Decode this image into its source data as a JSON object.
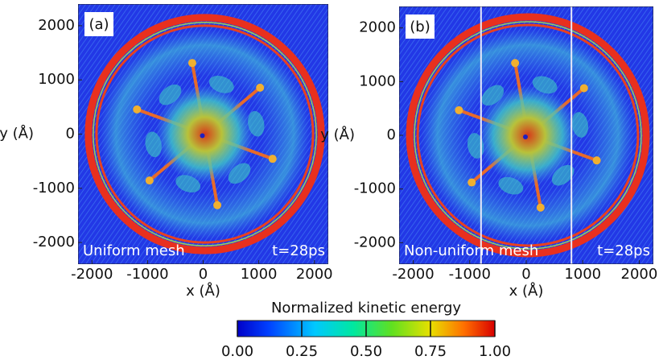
{
  "chart_data": [
    {
      "type": "heatmap",
      "panel_label": "(a)",
      "annotations": [
        "Uniform mesh",
        "t=28ps"
      ],
      "xlabel": "x (Å)",
      "ylabel": "y (Å)",
      "xlim": [
        -2250,
        2250
      ],
      "ylim": [
        -2400,
        2400
      ],
      "xticks": [
        -2000,
        -1000,
        0,
        1000,
        2000
      ],
      "yticks": [
        -2000,
        -1000,
        0,
        1000,
        2000
      ]
    },
    {
      "type": "heatmap",
      "panel_label": "(b)",
      "annotations": [
        "Non-uniform mesh",
        "t=28ps"
      ],
      "xlabel": "x (Å)",
      "ylabel": "y (Å)",
      "xlim": [
        -2250,
        2250
      ],
      "ylim": [
        -2400,
        2400
      ],
      "xticks": [
        -2000,
        -1000,
        0,
        1000,
        2000
      ],
      "yticks": [
        -2000,
        -1000,
        0,
        1000,
        2000
      ]
    }
  ],
  "colorbar": {
    "label": "Normalized kinetic energy",
    "lim": [
      0,
      1
    ],
    "ticks": [
      {
        "value": 0,
        "label": "0.00"
      },
      {
        "value": 0.25,
        "label": "0.25"
      },
      {
        "value": 0.5,
        "label": "0.50"
      },
      {
        "value": 0.75,
        "label": "0.75"
      },
      {
        "value": 1,
        "label": "1.00"
      }
    ]
  }
}
